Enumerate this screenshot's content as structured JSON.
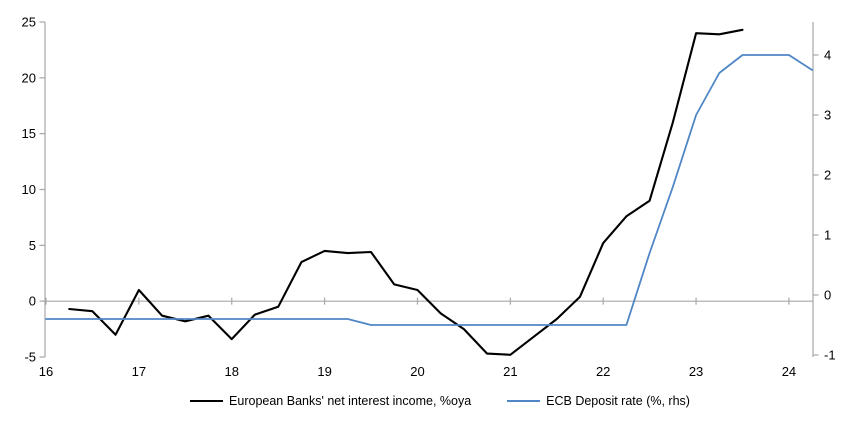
{
  "chart_data": {
    "type": "line",
    "title": "",
    "grid": false,
    "legend_position": "bottom",
    "x_axis": {
      "range": [
        16,
        24.27
      ],
      "ticks": [
        16,
        17,
        18,
        19,
        20,
        21,
        22,
        23,
        24
      ],
      "tick_labels": [
        "16",
        "17",
        "18",
        "19",
        "20",
        "21",
        "22",
        "23",
        "24"
      ]
    },
    "left_axis": {
      "range": [
        -5,
        25
      ],
      "ticks": [
        -5,
        0,
        5,
        10,
        15,
        20,
        25
      ],
      "tick_labels": [
        "-5",
        "0",
        "5",
        "10",
        "15",
        "20",
        "25"
      ]
    },
    "right_axis": {
      "range": [
        -1.03,
        4.55
      ],
      "ticks": [
        -1,
        0,
        1,
        2,
        3,
        4
      ],
      "tick_labels": [
        "-1",
        "0",
        "1",
        "2",
        "3",
        "4"
      ]
    },
    "series": [
      {
        "name": "European Banks' net interest income, %oya",
        "axis": "left",
        "color": "#000000",
        "width": 2.1,
        "x": [
          16.25,
          16.5,
          16.75,
          17,
          17.25,
          17.5,
          17.75,
          18,
          18.25,
          18.5,
          18.75,
          19,
          19.25,
          19.5,
          19.75,
          20,
          20.25,
          20.5,
          20.75,
          21,
          21.25,
          21.5,
          21.75,
          22,
          22.25,
          22.5,
          22.75,
          23,
          23.25,
          23.5
        ],
        "y": [
          -0.7,
          -0.9,
          -3.0,
          1.0,
          -1.3,
          -1.8,
          -1.3,
          -3.4,
          -1.2,
          -0.5,
          3.5,
          4.5,
          4.3,
          4.4,
          1.5,
          1.0,
          -1.1,
          -2.5,
          -4.7,
          -4.8,
          -3.2,
          -1.6,
          0.4,
          5.2,
          7.6,
          9.0,
          16.0,
          24.0,
          23.9,
          24.3
        ]
      },
      {
        "name": "ECB Deposit rate (%, rhs)",
        "axis": "right",
        "color": "#4f86c6",
        "width": 1.8,
        "x": [
          16,
          16.25,
          16.5,
          16.75,
          17,
          17.25,
          17.5,
          17.75,
          18,
          18.25,
          18.5,
          18.75,
          19,
          19.25,
          19.5,
          19.75,
          20,
          20.25,
          20.5,
          20.75,
          21,
          21.25,
          21.5,
          21.75,
          22,
          22.25,
          22.5,
          22.75,
          23,
          23.25,
          23.5,
          23.75,
          24,
          24.25
        ],
        "y": [
          -0.4,
          -0.4,
          -0.4,
          -0.4,
          -0.4,
          -0.4,
          -0.4,
          -0.4,
          -0.4,
          -0.4,
          -0.4,
          -0.4,
          -0.4,
          -0.4,
          -0.5,
          -0.5,
          -0.5,
          -0.5,
          -0.5,
          -0.5,
          -0.5,
          -0.5,
          -0.5,
          -0.5,
          -0.5,
          -0.5,
          0.7,
          1.8,
          3.0,
          3.7,
          4.0,
          4.0,
          4.0,
          3.75
        ]
      }
    ]
  },
  "colors": {
    "background": "#ffffff",
    "axis_line": "#a6a6a6",
    "zero_line": "#a8a8a8",
    "tick_text": "#000000"
  }
}
